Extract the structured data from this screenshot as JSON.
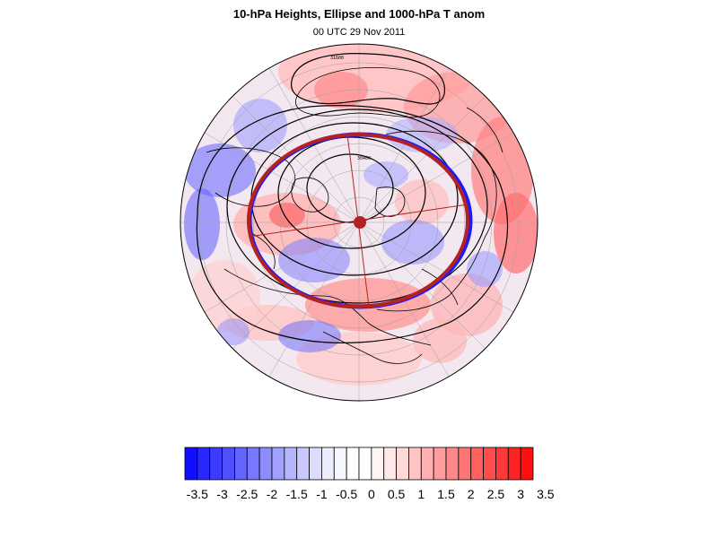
{
  "title": "10-hPa Heights, Ellipse and 1000-hPa T anom",
  "subtitle": "00 UTC 29 Nov 2011",
  "map": {
    "projection": "polar-orthographic-north",
    "shading_field": "1000-hPa T anom",
    "contour_field": "10-hPa Heights",
    "contour_labels": [
      "31600",
      "30400"
    ],
    "ellipse_color": "#b22222",
    "contour_color": "#000000",
    "coast_color": "#000000",
    "grid_color": "#a9a9a9"
  },
  "colorbar": {
    "tick_labels": [
      "-3.5",
      "-3",
      "-2.5",
      "-2",
      "-1.5",
      "-1",
      "-0.5",
      "0",
      "0.5",
      "1",
      "1.5",
      "2",
      "2.5",
      "3",
      "3.5"
    ],
    "colors": [
      "#1010ff",
      "#2828ff",
      "#3c3cff",
      "#5050ff",
      "#6464ff",
      "#7878ff",
      "#8c8cff",
      "#a0a0ff",
      "#b4b4ff",
      "#c8c8ff",
      "#dcdcff",
      "#ececff",
      "#f6f6ff",
      "#ffffff",
      "#ffffff",
      "#fff4f4",
      "#ffe8e8",
      "#ffd8d8",
      "#ffc4c4",
      "#ffb0b0",
      "#ff9c9c",
      "#ff8888",
      "#ff7474",
      "#ff6060",
      "#ff4c4c",
      "#ff3838",
      "#ff2424",
      "#ff1010"
    ]
  }
}
